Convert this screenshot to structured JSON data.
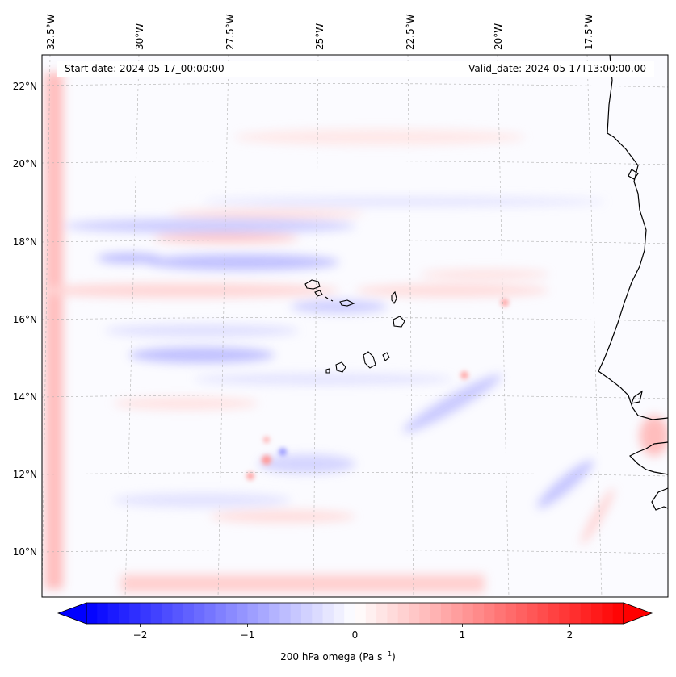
{
  "map": {
    "start_label": "Start date: 2024-05-17_00:00:00",
    "valid_label": "Valid_date: 2024-05-17T13:00:00.00",
    "lon_labels": [
      "32.5°W",
      "30°W",
      "27.5°W",
      "25°W",
      "22.5°W",
      "20°W",
      "17.5°W"
    ],
    "lat_labels": [
      "22°N",
      "20°N",
      "18°N",
      "16°N",
      "14°N",
      "12°N",
      "10°N"
    ],
    "extent": {
      "lon_min": -32.6,
      "lon_max": -16.0,
      "lat_min": 8.9,
      "lat_max": 22.7
    },
    "field": "200 hPa omega",
    "colormap": "bwr",
    "land_outline_color": "#000000"
  },
  "colorbar": {
    "label_main": "200 hPa omega (Pa s",
    "label_exp": "−1",
    "label_close": ")",
    "ticks": [
      "−2",
      "−1",
      "0",
      "1",
      "2"
    ],
    "tick_values": [
      -2,
      -1,
      0,
      1,
      2
    ],
    "range": [
      -2.5,
      2.5
    ],
    "extend": "both",
    "min_color": "#0000ff",
    "mid_color": "#ffffff",
    "max_color": "#ff0000"
  }
}
